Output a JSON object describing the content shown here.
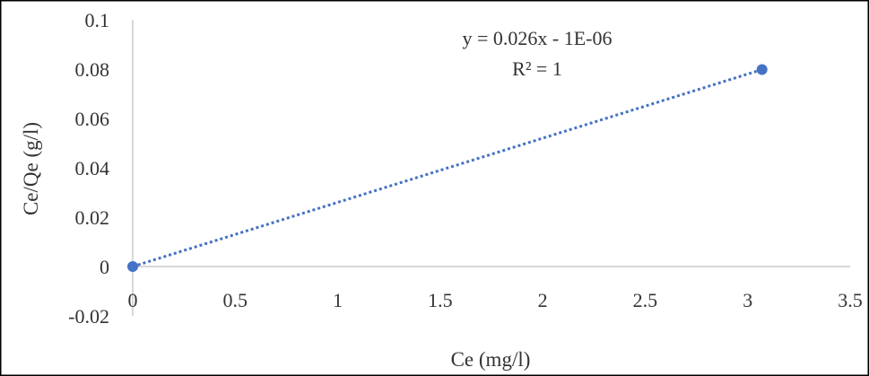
{
  "chart_data": {
    "type": "scatter",
    "title": "",
    "xlabel": "Ce (mg/l)",
    "ylabel": "Ce/Qe (g/l)",
    "xlim": [
      0,
      3.5
    ],
    "ylim": [
      -0.02,
      0.1
    ],
    "x_ticks": [
      0,
      0.5,
      1,
      1.5,
      2,
      2.5,
      3,
      3.5
    ],
    "x_tick_labels": [
      "0",
      "0.5",
      "1",
      "1.5",
      "2",
      "2.5",
      "3",
      "3.5"
    ],
    "y_ticks": [
      -0.02,
      0,
      0.02,
      0.04,
      0.06,
      0.08,
      0.1
    ],
    "y_tick_labels": [
      "-0.02",
      "0",
      "0.02",
      "0.04",
      "0.06",
      "0.08",
      "0.1"
    ],
    "grid": false,
    "series": [
      {
        "points": [
          {
            "x": 0,
            "y": 0
          },
          {
            "x": 3.07,
            "y": 0.0798
          }
        ],
        "color": "#4472c4"
      }
    ],
    "trendline": {
      "type": "linear",
      "slope": 0.026,
      "intercept": -1e-06,
      "x_range": [
        0,
        3.07
      ],
      "color": "#4472c4",
      "style": "dotted"
    },
    "annotations": {
      "equation": "y = 0.026x - 1E-06",
      "r_squared": "R² = 1"
    },
    "colors": {
      "axis": "#bfbfbf",
      "border": "#000000",
      "marker": "#4472c4"
    }
  }
}
